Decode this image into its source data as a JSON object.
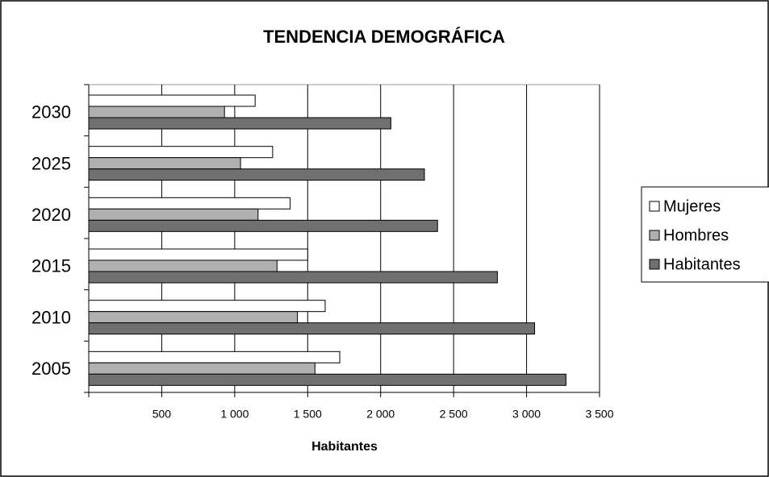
{
  "chart_data": {
    "type": "bar",
    "orientation": "horizontal",
    "title": "TENDENCIA DEMOGRÁFICA",
    "x_label": "Habitantes",
    "categories": [
      "2005",
      "2010",
      "2015",
      "2020",
      "2025",
      "2030"
    ],
    "series": [
      {
        "name": "Mujeres",
        "color": "#ffffff",
        "values": [
          1720,
          1620,
          1500,
          1380,
          1260,
          1140
        ]
      },
      {
        "name": "Hombres",
        "color": "#b0b0b0",
        "values": [
          1550,
          1430,
          1290,
          1160,
          1040,
          930
        ]
      },
      {
        "name": "Habitantes",
        "color": "#707070",
        "values": [
          3270,
          3055,
          2800,
          2390,
          2300,
          2070
        ]
      }
    ],
    "xlim": [
      0,
      3500
    ],
    "xticks": [
      500,
      {
        "value": 1000,
        "label": "1 000"
      },
      {
        "value": 1500,
        "label": "1 500"
      },
      {
        "value": 2000,
        "label": "2 000"
      },
      {
        "value": 2500,
        "label": "2 500"
      },
      {
        "value": 3000,
        "label": "3 000"
      },
      {
        "value": 3500,
        "label": "3 500"
      }
    ],
    "grid": true,
    "legend": "right"
  }
}
